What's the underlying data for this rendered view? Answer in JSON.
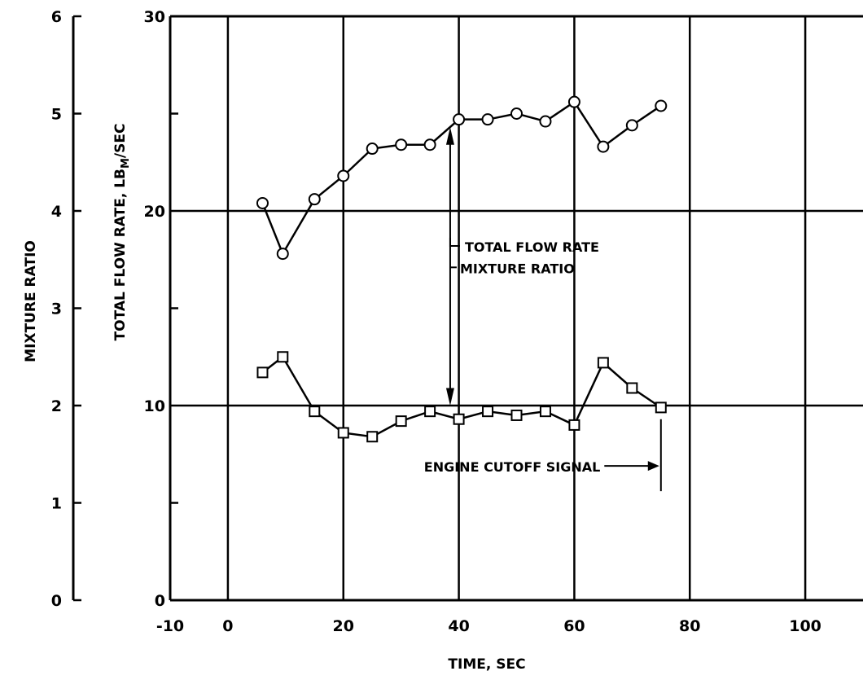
{
  "chart_data": {
    "type": "line",
    "xlabel": "TIME, SEC",
    "ylabel": "TOTAL FLOW RATE, LB_M/SEC",
    "ylabel_main": "TOTAL FLOW RATE, LB",
    "ylabel_sub": "M",
    "ylabel_tail": "/SEC",
    "y2label": "MIXTURE RATIO",
    "xlim": [
      -10,
      110
    ],
    "ylim": [
      0,
      30
    ],
    "y2lim": [
      0,
      6
    ],
    "grid": true,
    "x_ticks": [
      -10,
      0,
      20,
      40,
      60,
      80,
      100
    ],
    "x_tick_labels": [
      "-10",
      "0",
      "20",
      "40",
      "60",
      "80",
      "100"
    ],
    "x_grid": [
      0,
      20,
      40,
      60,
      80,
      100
    ],
    "y_grid": [
      10,
      20
    ],
    "y_ticks": [
      0,
      10,
      20,
      30
    ],
    "y_tick_labels": [
      "0",
      "10",
      "20",
      "30"
    ],
    "y2_ticks": [
      0,
      1,
      2,
      3,
      4,
      5,
      6
    ],
    "y2_tick_labels": [
      "0",
      "1",
      "2",
      "3",
      "4",
      "5",
      "6"
    ],
    "series": [
      {
        "name": "TOTAL FLOW RATE",
        "marker": "circle",
        "axis": "left",
        "x": [
          6,
          9.5,
          15,
          20,
          25,
          30,
          35,
          40,
          45,
          50,
          55,
          60,
          65,
          70,
          75
        ],
        "y": [
          20.4,
          17.8,
          20.6,
          21.8,
          23.2,
          23.4,
          23.4,
          24.7,
          24.7,
          25.0,
          24.6,
          25.6,
          23.3,
          24.4,
          25.4
        ]
      },
      {
        "name": "MIXTURE RATIO",
        "marker": "square",
        "axis": "right",
        "x": [
          6,
          9.5,
          15,
          20,
          25,
          30,
          35,
          40,
          45,
          50,
          55,
          60,
          65,
          70,
          75
        ],
        "y": [
          2.34,
          2.5,
          1.94,
          1.72,
          1.68,
          1.84,
          1.94,
          1.86,
          1.94,
          1.9,
          1.94,
          1.8,
          2.44,
          2.18,
          1.98
        ]
      }
    ],
    "annotations": [
      {
        "id": "flow",
        "text": "TOTAL FLOW RATE"
      },
      {
        "id": "mixture",
        "text": "MIXTURE RATIO"
      },
      {
        "id": "cutoff",
        "text": "ENGINE CUTOFF SIGNAL"
      }
    ]
  }
}
